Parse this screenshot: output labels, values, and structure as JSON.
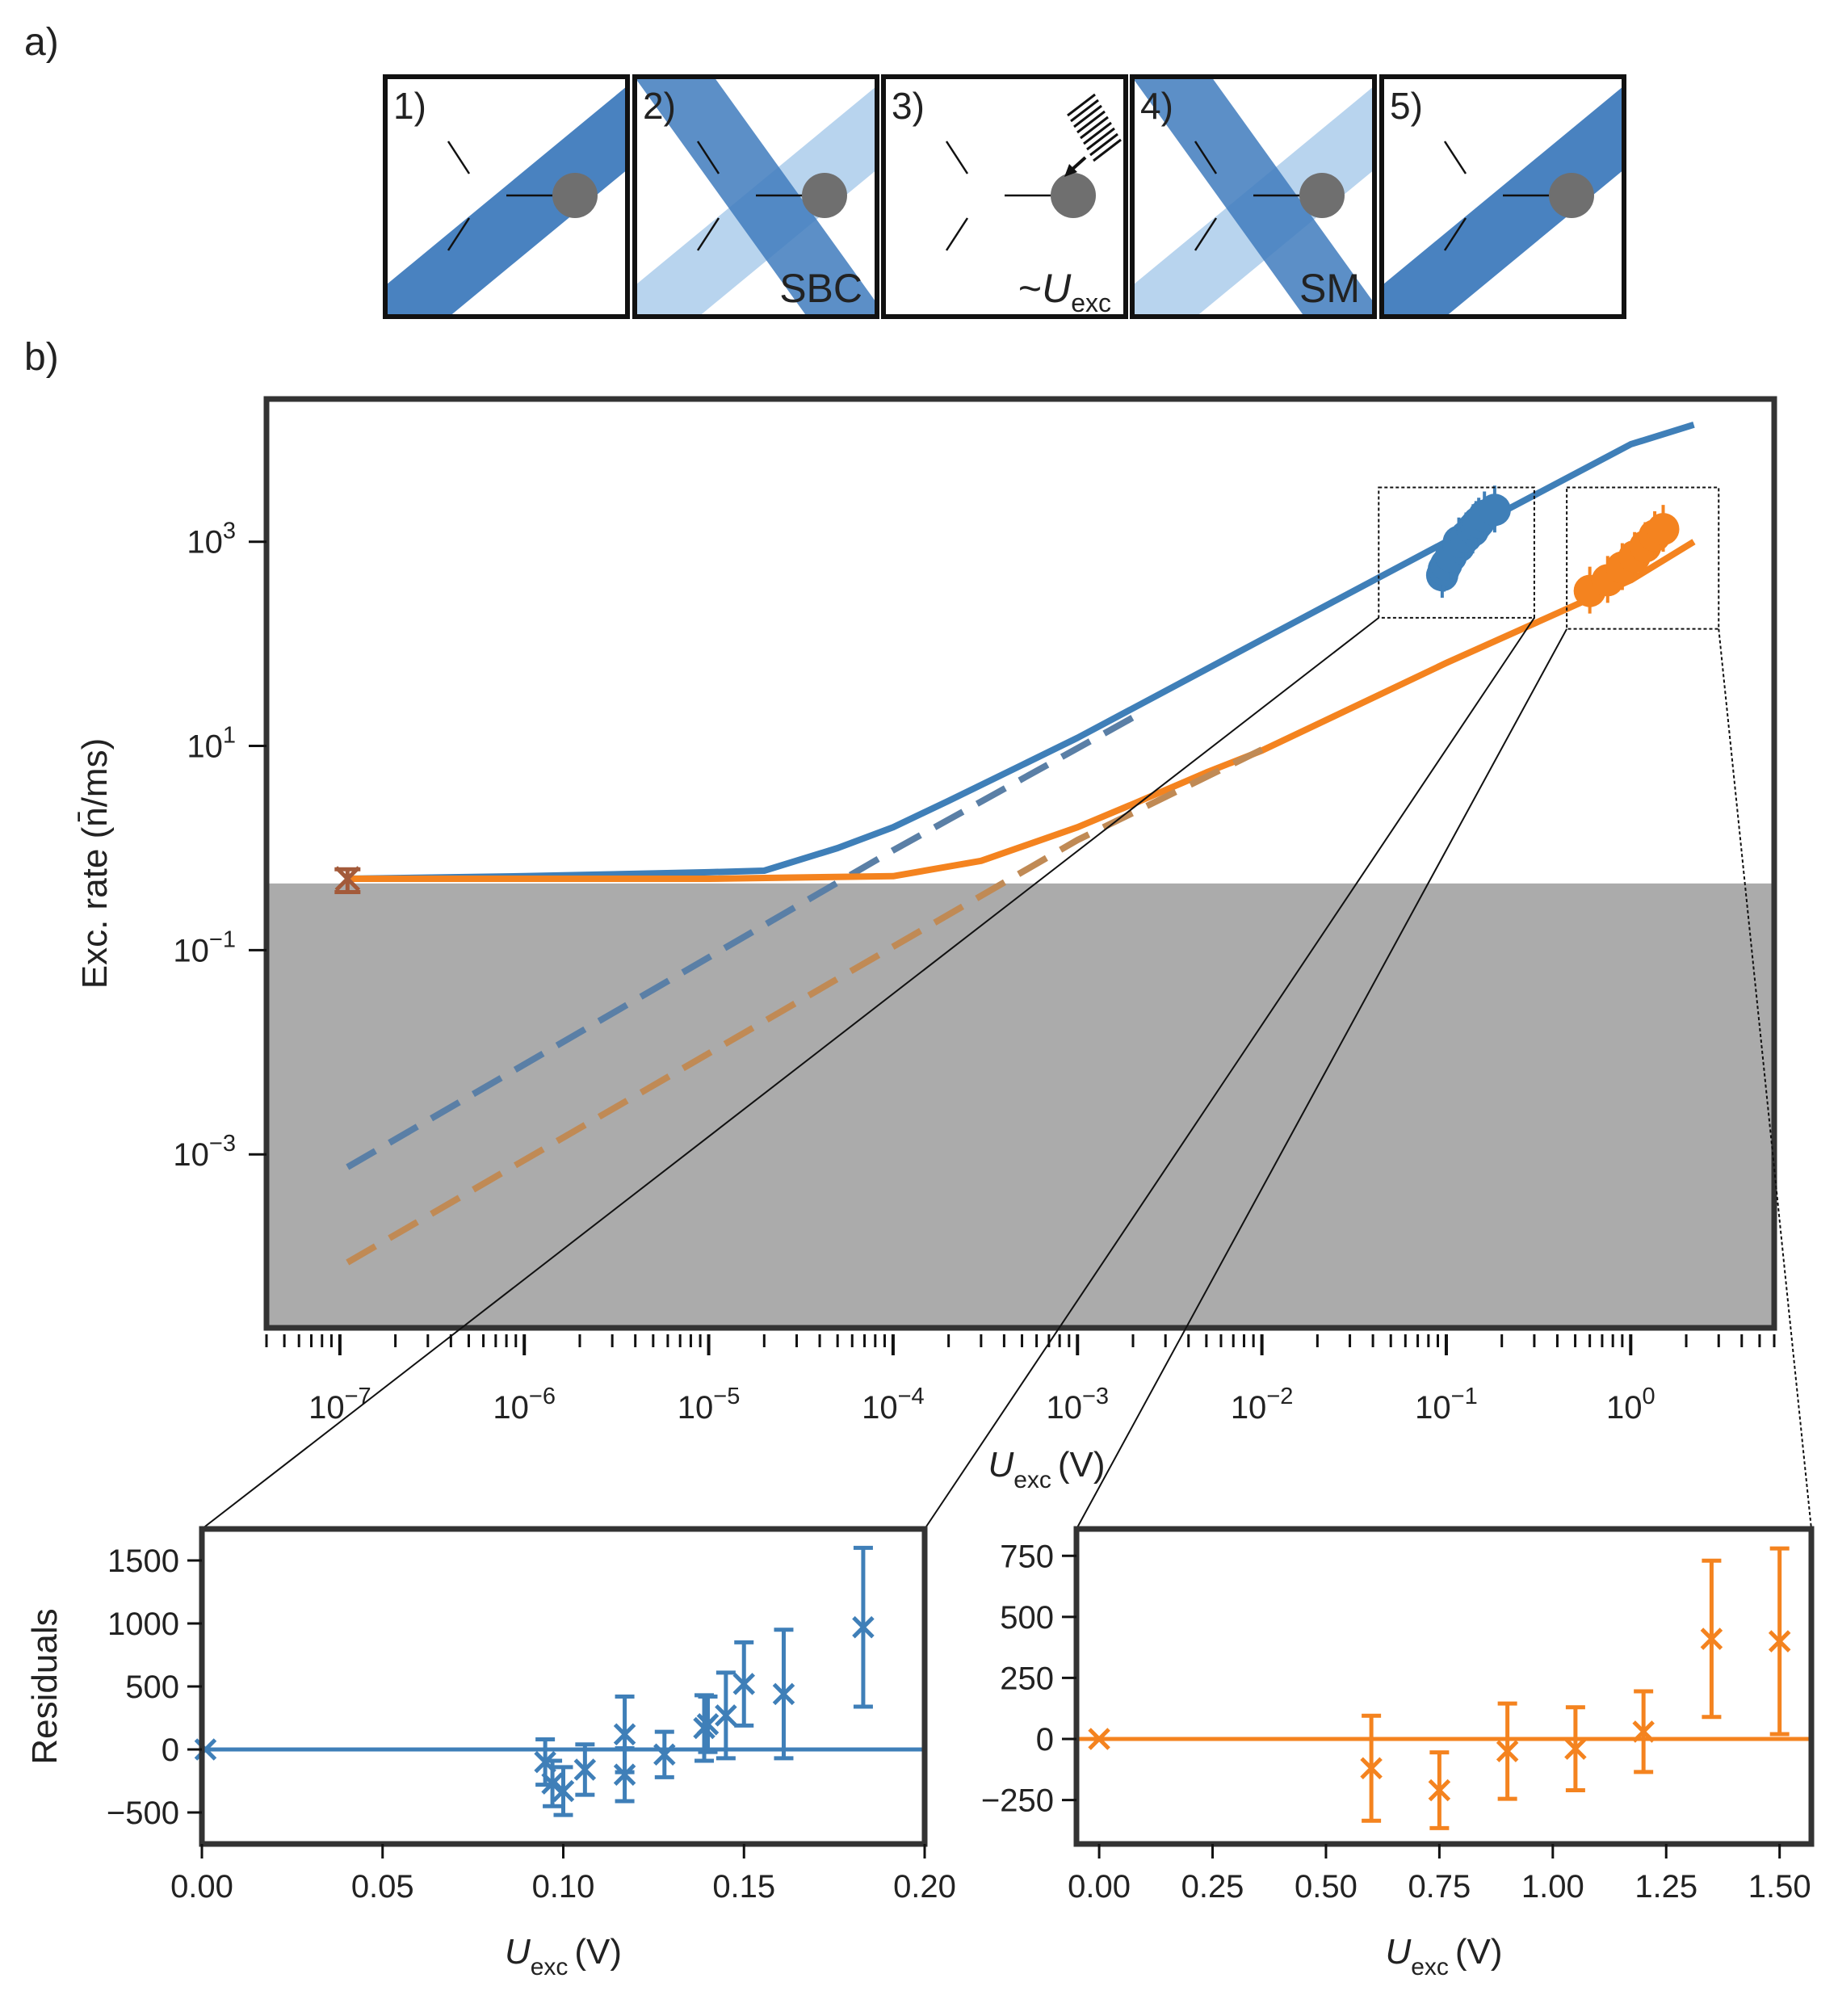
{
  "panel_a": {
    "label": "a)",
    "steps": [
      {
        "num": "1)",
        "beams": "single",
        "caption": ""
      },
      {
        "num": "2)",
        "beams": "double",
        "caption": "SBC"
      },
      {
        "num": "3)",
        "beams": "none",
        "caption": "~U",
        "caption_sub": "exc"
      },
      {
        "num": "4)",
        "beams": "double",
        "caption": "SM"
      },
      {
        "num": "5)",
        "beams": "single",
        "caption": ""
      }
    ],
    "colors": {
      "beam_dark": "#3f7bbd",
      "beam_light": "#b8d4ee",
      "ion": "#6f6f6f"
    }
  },
  "panel_b": {
    "label": "b)"
  },
  "chart_data": [
    {
      "type": "line",
      "name": "main",
      "xscale": "log",
      "yscale": "log",
      "xlim": [
        4e-08,
        6
      ],
      "ylim": [
        2e-05,
        25000
      ],
      "xlabel": "U",
      "xlabel_sub": "exc",
      "xlabel_unit": "(V)",
      "ylabel": "Exc. rate (n̄/ms)",
      "xticks": [
        {
          "base": "10",
          "exp": "−7",
          "value": 1e-07
        },
        {
          "base": "10",
          "exp": "−6",
          "value": 1e-06
        },
        {
          "base": "10",
          "exp": "−5",
          "value": 1e-05
        },
        {
          "base": "10",
          "exp": "−4",
          "value": 0.0001
        },
        {
          "base": "10",
          "exp": "−3",
          "value": 0.001
        },
        {
          "base": "10",
          "exp": "−2",
          "value": 0.01
        },
        {
          "base": "10",
          "exp": "−1",
          "value": 0.1
        },
        {
          "base": "10",
          "exp": "0",
          "value": 1
        }
      ],
      "yticks": [
        {
          "base": "10",
          "exp": "3",
          "value": 1000
        },
        {
          "base": "10",
          "exp": "1",
          "value": 10
        },
        {
          "base": "10",
          "exp": "−1",
          "value": 0.1
        },
        {
          "base": "10",
          "exp": "−3",
          "value": 0.001
        }
      ],
      "shaded_region": {
        "y_max": 0.45,
        "color": "#ababab"
      },
      "series": [
        {
          "name": "blue fit (total)",
          "color": "#3f7fb8",
          "style": "solid",
          "x": [
            1.1e-07,
            1e-06,
            1e-05,
            2e-05,
            5e-05,
            0.0001,
            0.0002,
            0.0005,
            0.001,
            0.01,
            0.1,
            1,
            2.2
          ],
          "y": [
            0.5,
            0.53,
            0.58,
            0.6,
            1.0,
            1.6,
            2.9,
            6.5,
            12,
            110,
            1000,
            9000,
            14000
          ]
        },
        {
          "name": "blue fit (excitation only)",
          "color": "#5a7fa6",
          "style": "dashed",
          "x": [
            1.1e-07,
            0.0001,
            0.001,
            0.002
          ],
          "y": [
            0.00075,
            0.95,
            9.5,
            19
          ]
        },
        {
          "name": "orange fit (total)",
          "color": "#f4831f",
          "style": "solid",
          "x": [
            1.1e-07,
            1e-06,
            1e-05,
            0.0001,
            0.0003,
            0.001,
            0.002,
            0.005,
            0.01,
            0.1,
            1,
            2.2
          ],
          "y": [
            0.5,
            0.5,
            0.5,
            0.53,
            0.75,
            1.6,
            2.7,
            5.5,
            9,
            65,
            420,
            1000
          ]
        },
        {
          "name": "orange fit (excitation only)",
          "color": "#c08a55",
          "style": "dashed",
          "x": [
            1.1e-07,
            0.001,
            0.01
          ],
          "y": [
            8.75e-05,
            1.2,
            9.2
          ]
        }
      ],
      "points": [
        {
          "series": "blue data",
          "color": "#3f7fb8",
          "x": [
            0.095,
            0.097,
            0.1,
            0.106,
            0.117,
            0.117,
            0.128,
            0.139,
            0.14,
            0.145,
            0.15,
            0.161,
            0.183
          ],
          "y": [
            470,
            540,
            600,
            720,
            900,
            1000,
            1120,
            1280,
            1350,
            1450,
            1560,
            1800,
            2050
          ]
        },
        {
          "series": "orange data",
          "color": "#f4831f",
          "x": [
            0.6,
            0.75,
            0.9,
            1.05,
            1.2,
            1.35,
            1.5
          ],
          "y": [
            330,
            420,
            560,
            720,
            900,
            1150,
            1330
          ]
        }
      ],
      "zero_point": {
        "x": 1.1e-07,
        "y": 0.5,
        "err_low": 0.37,
        "err_high": 0.62,
        "color": "#a35a3a"
      },
      "zoom_boxes": [
        {
          "x_range": [
            0.043,
            0.3
          ],
          "y_range": [
            180,
            3400
          ]
        },
        {
          "x_range": [
            0.45,
            3.0
          ],
          "y_range": [
            140,
            3400
          ]
        }
      ]
    },
    {
      "type": "scatter",
      "name": "residuals_blue",
      "color": "#3f7fb8",
      "xlim": [
        0.0,
        0.2
      ],
      "ylim": [
        -750,
        1750
      ],
      "ylabel": "Residuals",
      "xlabel": "U",
      "xlabel_sub": "exc",
      "xlabel_unit": "(V)",
      "xticks": [
        "0.00",
        "0.05",
        "0.10",
        "0.15",
        "0.20"
      ],
      "yticks": [
        "1500",
        "1000",
        "500",
        "0",
        "−500"
      ],
      "ytick_values": [
        1500,
        1000,
        500,
        0,
        -500
      ],
      "zero_line": 0,
      "x": [
        0.001,
        0.095,
        0.097,
        0.1,
        0.106,
        0.117,
        0.117,
        0.128,
        0.139,
        0.14,
        0.145,
        0.15,
        0.161,
        0.183
      ],
      "y": [
        0,
        -100,
        -270,
        -330,
        -160,
        120,
        -200,
        -40,
        170,
        200,
        270,
        520,
        440,
        970
      ],
      "yerr": [
        0,
        180,
        180,
        190,
        200,
        300,
        210,
        180,
        260,
        220,
        340,
        330,
        510,
        630
      ]
    },
    {
      "type": "scatter",
      "name": "residuals_orange",
      "color": "#f4831f",
      "xlim": [
        -0.05,
        1.57
      ],
      "ylim": [
        -430,
        860
      ],
      "xlabel": "U",
      "xlabel_sub": "exc",
      "xlabel_unit": "(V)",
      "xticks": [
        "0.00",
        "0.25",
        "0.50",
        "0.75",
        "1.00",
        "1.25",
        "1.50"
      ],
      "xtick_values": [
        0,
        0.25,
        0.5,
        0.75,
        1.0,
        1.25,
        1.5
      ],
      "yticks": [
        "750",
        "500",
        "250",
        "0",
        "−250"
      ],
      "ytick_values": [
        750,
        500,
        250,
        0,
        -250
      ],
      "zero_line": 0,
      "x": [
        0.0,
        0.6,
        0.75,
        0.9,
        1.05,
        1.2,
        1.35,
        1.5
      ],
      "y": [
        0,
        -120,
        -210,
        -50,
        -40,
        30,
        410,
        400
      ],
      "yerr": [
        0,
        215,
        155,
        195,
        170,
        165,
        320,
        380
      ]
    }
  ]
}
